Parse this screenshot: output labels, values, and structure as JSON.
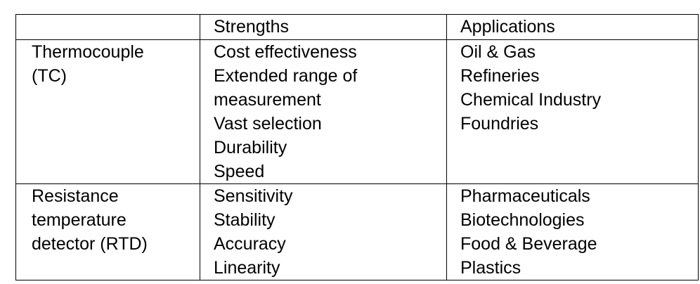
{
  "table": {
    "header": [
      "Strengths",
      "Applications"
    ],
    "rows": [
      {
        "sensor": "Thermocouple (TC)",
        "strengths": [
          "Cost effectiveness",
          "Extended range of measurement",
          "Vast selection",
          "Durability",
          "Speed"
        ],
        "applications": [
          "Oil & Gas",
          "Refineries",
          "Chemical Industry",
          "Foundries"
        ]
      },
      {
        "sensor": "Resistance temperature detector (RTD)",
        "strengths": [
          "Sensitivity",
          "Stability",
          "Accuracy",
          "Linearity"
        ],
        "applications": [
          "Pharmaceuticals",
          "Biotechnologies",
          "Food & Beverage",
          "Plastics"
        ]
      }
    ]
  }
}
